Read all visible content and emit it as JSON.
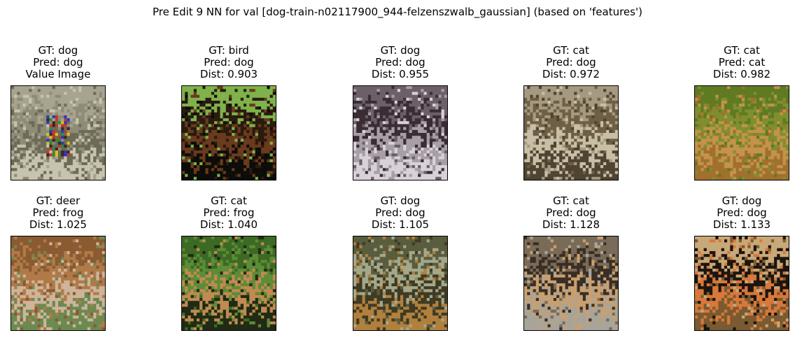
{
  "title": "Pre Edit 9 NN for val [dog-train-n02117900_944-felzenszwalb_gaussian] (based on 'features')",
  "panels": [
    {
      "gt": "GT: dog",
      "pred": "Pred: dog",
      "extra": "Value Image",
      "image": "dog-with-colored-noise-patch",
      "colors": [
        "#a7a38f",
        "#8f8c76",
        "#6d6b58",
        "#c7c3ad"
      ]
    },
    {
      "gt": "GT: bird",
      "pred": "Pred: dog",
      "extra": "Dist: 0.903",
      "image": "duck-on-grass",
      "colors": [
        "#7fb24a",
        "#2a1a10",
        "#6a3a1c",
        "#0c0c08"
      ]
    },
    {
      "gt": "GT: dog",
      "pred": "Pred: dog",
      "extra": "Dist: 0.955",
      "image": "dark-dog-grey-background",
      "colors": [
        "#6c6068",
        "#3a2c34",
        "#a79ea6",
        "#d8d2d8"
      ]
    },
    {
      "gt": "GT: cat",
      "pred": "Pred: dog",
      "extra": "Dist: 0.972",
      "image": "brown-cat-beige-background",
      "colors": [
        "#a59a80",
        "#6e5f45",
        "#c9bfa6",
        "#4f4432"
      ]
    },
    {
      "gt": "GT: cat",
      "pred": "Pred: cat",
      "extra": "Dist: 0.982",
      "image": "lions-on-grass",
      "colors": [
        "#5f7a22",
        "#7e8f2e",
        "#c4924a",
        "#a0702e"
      ]
    },
    {
      "gt": "GT: deer",
      "pred": "Pred: frog",
      "extra": "Dist: 1.025",
      "image": "brown-highland-cow",
      "colors": [
        "#8a5a30",
        "#b07a48",
        "#cdb49a",
        "#6b8a50"
      ]
    },
    {
      "gt": "GT: cat",
      "pred": "Pred: frog",
      "extra": "Dist: 1.040",
      "image": "tiger-in-greenery",
      "colors": [
        "#3c6a24",
        "#5d8c36",
        "#c08a50",
        "#202a14"
      ]
    },
    {
      "gt": "GT: dog",
      "pred": "Pred: dog",
      "extra": "Dist: 1.105",
      "image": "dog-lying-on-pavement",
      "colors": [
        "#5a5c3e",
        "#a4a88a",
        "#3e3a24",
        "#b0803c"
      ]
    },
    {
      "gt": "GT: cat",
      "pred": "Pred: dog",
      "extra": "Dist: 1.128",
      "image": "tiger-face-closeup",
      "colors": [
        "#7a6a58",
        "#3a2e24",
        "#c8a070",
        "#a8a49a"
      ]
    },
    {
      "gt": "GT: dog",
      "pred": "Pred: dog",
      "extra": "Dist: 1.133",
      "image": "black-tan-puppy",
      "colors": [
        "#c8a878",
        "#1c140e",
        "#d8783a",
        "#7a5a30"
      ]
    }
  ]
}
